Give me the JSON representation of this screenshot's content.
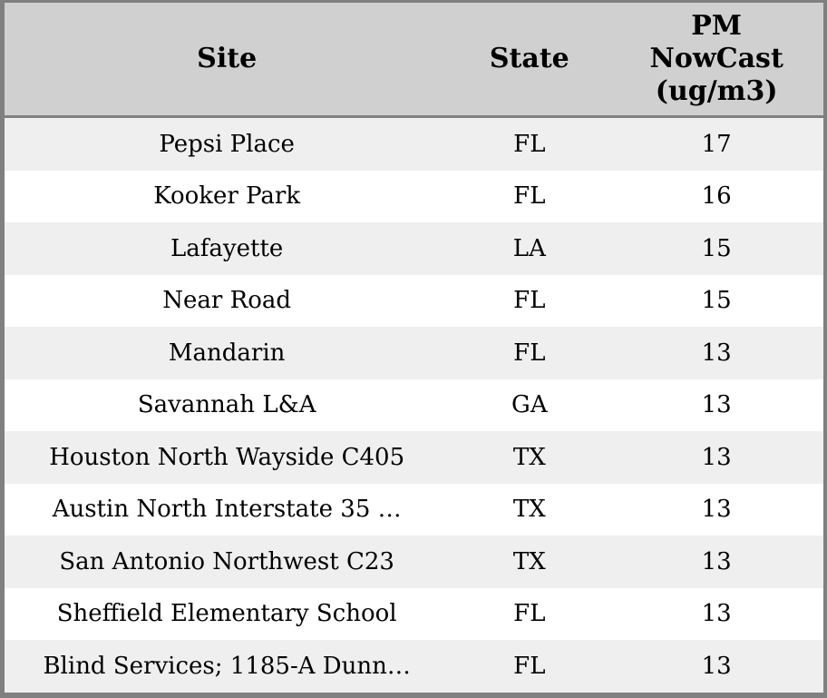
{
  "table": {
    "title_semantic": "PM NowCast site readings table",
    "header": {
      "site": "Site",
      "state": "State",
      "pm": "PM\nNowCast\n(ug/m3)"
    },
    "rows": [
      {
        "site": "Pepsi Place",
        "state": "FL",
        "pm": "17"
      },
      {
        "site": "Kooker Park",
        "state": "FL",
        "pm": "16"
      },
      {
        "site": "Lafayette",
        "state": "LA",
        "pm": "15"
      },
      {
        "site": "Near Road",
        "state": "FL",
        "pm": "15"
      },
      {
        "site": "Mandarin",
        "state": "FL",
        "pm": "13"
      },
      {
        "site": "Savannah L&A",
        "state": "GA",
        "pm": "13"
      },
      {
        "site": "Houston North Wayside C405",
        "state": "TX",
        "pm": "13"
      },
      {
        "site": "Austin North Interstate 35 …",
        "state": "TX",
        "pm": "13"
      },
      {
        "site": "San Antonio Northwest C23",
        "state": "TX",
        "pm": "13"
      },
      {
        "site": "Sheffield Elementary School",
        "state": "FL",
        "pm": "13"
      },
      {
        "site": "Blind Services; 1185-A Dunn…",
        "state": "FL",
        "pm": "13"
      }
    ],
    "colors": {
      "header_bg": "#d0d0d0",
      "row_alt_bg": "#efefef",
      "row_bg": "#ffffff",
      "border": "#808080",
      "text": "#000000"
    }
  }
}
